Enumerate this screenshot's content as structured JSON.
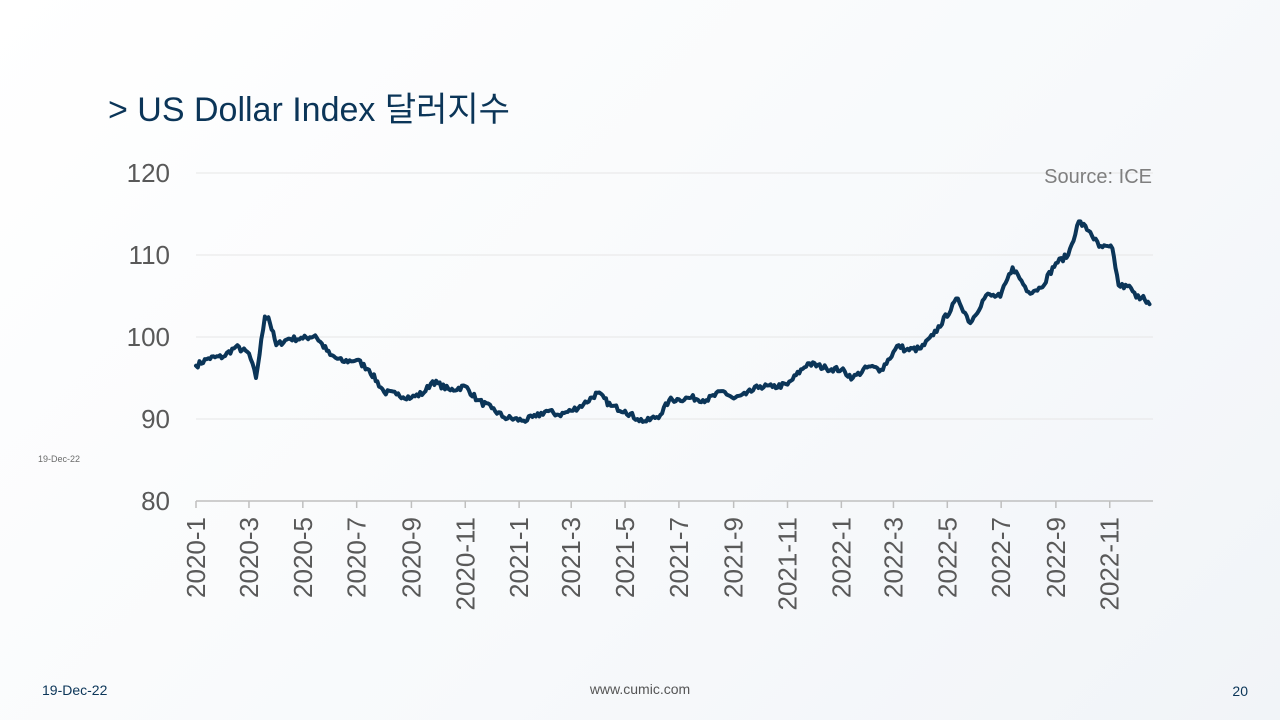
{
  "title": "> US Dollar Index 달러지수",
  "side_date": "19-Dec-22",
  "footer": {
    "date": "19-Dec-22",
    "url": "www.cumic.com",
    "page": "20"
  },
  "colors": {
    "line": "#0b3558",
    "title": "#0b3558",
    "grid": "#e6e6e6",
    "axis": "#bfbfbf"
  },
  "chart_data": {
    "type": "line",
    "title": "",
    "source": "Source: ICE",
    "xlabel": "",
    "ylabel": "",
    "ylim": [
      80,
      120
    ],
    "yticks": [
      80,
      90,
      100,
      110,
      120
    ],
    "x_range_months": [
      "2020-1",
      "2022-12"
    ],
    "xticks": [
      "2020-1",
      "2020-3",
      "2020-5",
      "2020-7",
      "2020-9",
      "2020-11",
      "2021-1",
      "2021-3",
      "2021-5",
      "2021-7",
      "2021-9",
      "2021-11",
      "2022-1",
      "2022-3",
      "2022-5",
      "2022-7",
      "2022-9",
      "2022-11"
    ],
    "grid": true,
    "series": [
      {
        "name": "",
        "x": [
          "2020-01-01",
          "2020-01-15",
          "2020-02-01",
          "2020-02-15",
          "2020-03-01",
          "2020-03-09",
          "2020-03-19",
          "2020-03-23",
          "2020-04-01",
          "2020-04-15",
          "2020-05-01",
          "2020-05-15",
          "2020-06-01",
          "2020-06-15",
          "2020-07-01",
          "2020-07-15",
          "2020-08-01",
          "2020-08-15",
          "2020-09-01",
          "2020-09-15",
          "2020-09-25",
          "2020-10-15",
          "2020-11-01",
          "2020-11-15",
          "2020-12-01",
          "2020-12-15",
          "2021-01-06",
          "2021-01-20",
          "2021-02-01",
          "2021-02-15",
          "2021-03-01",
          "2021-03-15",
          "2021-03-31",
          "2021-04-15",
          "2021-05-01",
          "2021-05-15",
          "2021-05-25",
          "2021-06-10",
          "2021-06-20",
          "2021-07-01",
          "2021-07-15",
          "2021-08-01",
          "2021-08-20",
          "2021-09-01",
          "2021-09-15",
          "2021-10-01",
          "2021-10-15",
          "2021-11-01",
          "2021-11-24",
          "2021-12-15",
          "2022-01-01",
          "2022-01-14",
          "2022-02-01",
          "2022-02-15",
          "2022-03-07",
          "2022-03-15",
          "2022-04-01",
          "2022-04-15",
          "2022-05-13",
          "2022-05-27",
          "2022-06-14",
          "2022-06-30",
          "2022-07-14",
          "2022-08-01",
          "2022-08-15",
          "2022-09-01",
          "2022-09-15",
          "2022-09-27",
          "2022-10-10",
          "2022-10-20",
          "2022-11-04",
          "2022-11-11",
          "2022-11-25",
          "2022-12-01",
          "2022-12-09",
          "2022-12-16"
        ],
        "values": [
          96.5,
          97.4,
          97.6,
          98.8,
          98.0,
          95.0,
          102.5,
          102.4,
          99.0,
          99.8,
          99.8,
          100.2,
          97.8,
          97.0,
          97.2,
          96.0,
          93.3,
          93.0,
          92.6,
          93.2,
          94.6,
          93.5,
          94.0,
          92.3,
          91.3,
          90.2,
          89.8,
          90.3,
          91.0,
          90.5,
          91.0,
          91.8,
          93.2,
          91.6,
          91.0,
          90.0,
          89.7,
          90.5,
          92.3,
          92.4,
          92.6,
          92.3,
          93.4,
          92.5,
          93.0,
          94.0,
          93.9,
          94.2,
          96.8,
          96.2,
          96.0,
          95.0,
          96.4,
          96.0,
          99.0,
          98.4,
          98.6,
          100.2,
          104.7,
          101.7,
          105.1,
          104.9,
          108.5,
          105.5,
          106.0,
          109.0,
          110.0,
          114.1,
          112.8,
          111.0,
          110.8,
          106.3,
          106.0,
          104.8,
          105.0,
          104.0
        ]
      }
    ]
  }
}
